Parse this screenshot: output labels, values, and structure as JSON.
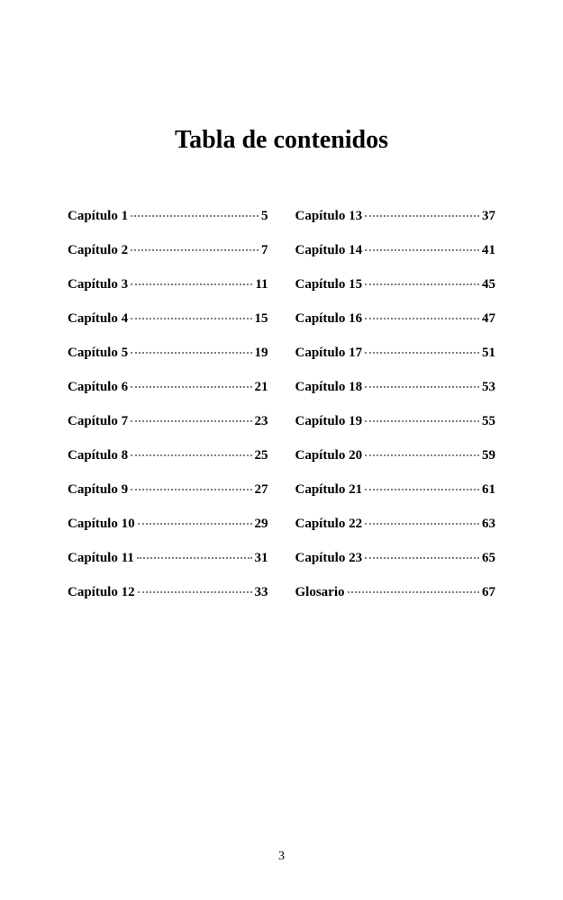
{
  "title": "Tabla de contenidos",
  "pageNumber": "3",
  "columns": {
    "left": [
      {
        "label": "Capítulo 1",
        "page": "5"
      },
      {
        "label": "Capítulo 2",
        "page": "7"
      },
      {
        "label": "Capítulo 3",
        "page": "11"
      },
      {
        "label": "Capítulo 4",
        "page": "15"
      },
      {
        "label": "Capítulo 5",
        "page": "19"
      },
      {
        "label": "Capítulo 6",
        "page": "21"
      },
      {
        "label": "Capítulo 7",
        "page": "23"
      },
      {
        "label": "Capítulo 8",
        "page": "25"
      },
      {
        "label": "Capítulo 9",
        "page": "27"
      },
      {
        "label": "Capítulo 10",
        "page": "29"
      },
      {
        "label": "Capítulo 11",
        "page": "31"
      },
      {
        "label": "Capítulo 12",
        "page": "33"
      }
    ],
    "right": [
      {
        "label": "Capítulo 13",
        "page": "37"
      },
      {
        "label": "Capítulo 14",
        "page": "41"
      },
      {
        "label": "Capítulo 15",
        "page": "45"
      },
      {
        "label": "Capítulo 16",
        "page": "47"
      },
      {
        "label": "Capítulo 17",
        "page": "51"
      },
      {
        "label": "Capítulo 18",
        "page": "53"
      },
      {
        "label": "Capítulo 19",
        "page": "55"
      },
      {
        "label": "Capítulo 20",
        "page": "59"
      },
      {
        "label": "Capítulo 21",
        "page": "61"
      },
      {
        "label": "Capítulo 22",
        "page": "63"
      },
      {
        "label": "Capítulo 23",
        "page": "65"
      },
      {
        "label": "Glosario",
        "page": "67"
      }
    ]
  },
  "styles": {
    "title_fontsize": 28,
    "entry_fontsize": 15,
    "entry_fontweight": "bold",
    "text_color": "#000000",
    "leader_color": "#808080",
    "background_color": "#ffffff",
    "row_spacing": 21,
    "column_gap": 30
  }
}
